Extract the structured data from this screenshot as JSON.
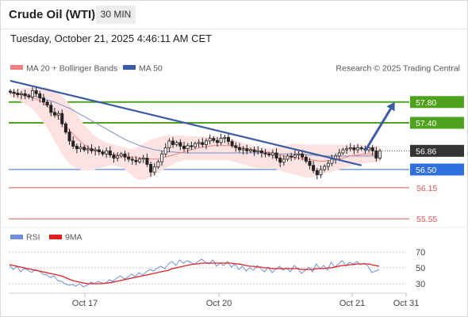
{
  "header": {
    "title": "Crude Oil (WTI)",
    "timeframe": "30 MIN",
    "timestamp": "Tuesday, October 21, 2025 4:46:11 AM CET"
  },
  "legend": {
    "ma20_label": "MA 20 + Bollinger Bands",
    "ma50_label": "MA 50",
    "copyright": "Research © 2025 Trading Central",
    "rsi_label": "RSI",
    "ma9_label": "9MA"
  },
  "colors": {
    "ma20": "#f08080",
    "bollinger_fill": "#fde2e2",
    "ma50": "#3b5ba5",
    "candle": "#222222",
    "trendline": "#3b5ba5",
    "resistance": "#4fa31c",
    "support_pivot": "#2f6fe0",
    "support": "#e05555",
    "current_price_bg": "#333333",
    "rsi": "#6f8fd8",
    "rsi_ma": "#e02020"
  },
  "chart_data": [
    {
      "type": "candlestick",
      "ylim": [
        55.4,
        58.3
      ],
      "x_ticks": [
        "Oct 17",
        "Oct 20",
        "Oct 21",
        "Oct 31"
      ],
      "price_levels": [
        {
          "label": "57.80",
          "value": 57.8,
          "kind": "resistance"
        },
        {
          "label": "57.40",
          "value": 57.4,
          "kind": "resistance"
        },
        {
          "label": "56.86",
          "value": 56.86,
          "kind": "current"
        },
        {
          "label": "56.50",
          "value": 56.5,
          "kind": "pivot"
        },
        {
          "label": "56.15",
          "value": 56.15,
          "kind": "support"
        },
        {
          "label": "55.55",
          "value": 55.55,
          "kind": "support"
        }
      ],
      "close": [
        57.99,
        57.97,
        57.94,
        57.96,
        57.92,
        57.9,
        58.02,
        57.96,
        57.88,
        57.8,
        57.74,
        57.6,
        57.55,
        57.58,
        57.38,
        57.22,
        57.05,
        56.95,
        56.9,
        56.93,
        56.88,
        56.9,
        56.86,
        56.88,
        56.84,
        56.8,
        56.86,
        56.78,
        56.72,
        56.76,
        56.8,
        56.74,
        56.7,
        56.68,
        56.65,
        56.7,
        56.72,
        56.6,
        56.45,
        56.55,
        56.65,
        56.8,
        56.92,
        57.05,
        56.98,
        57.02,
        56.95,
        56.9,
        56.96,
        56.94,
        57.0,
        57.02,
        56.98,
        57.05,
        57.1,
        57.06,
        57.02,
        57.1,
        57.12,
        57.04,
        56.96,
        56.92,
        56.88,
        56.9,
        56.86,
        56.88,
        56.84,
        56.86,
        56.82,
        56.8,
        56.78,
        56.82,
        56.72,
        56.64,
        56.7,
        56.76,
        56.74,
        56.78,
        56.8,
        56.74,
        56.66,
        56.58,
        56.48,
        56.4,
        56.5,
        56.56,
        56.62,
        56.7,
        56.76,
        56.82,
        56.88,
        56.9,
        56.92,
        56.88,
        56.92,
        56.9,
        56.88,
        56.92,
        56.86,
        56.72,
        56.86
      ],
      "ma20": [
        57.98,
        57.96,
        57.95,
        57.94,
        57.92,
        57.9,
        57.88,
        57.86,
        57.82,
        57.78,
        57.72,
        57.66,
        57.58,
        57.5,
        57.42,
        57.34,
        57.26,
        57.18,
        57.1,
        57.04,
        56.98,
        56.94,
        56.9,
        56.88,
        56.86,
        56.84,
        56.82,
        56.8,
        56.79,
        56.78,
        56.77,
        56.76,
        56.75,
        56.74,
        56.73,
        56.72,
        56.72,
        56.71,
        56.7,
        56.7,
        56.71,
        56.72,
        56.74,
        56.76,
        56.78,
        56.8,
        56.82,
        56.84,
        56.86,
        56.88,
        56.9,
        56.92,
        56.93,
        56.94,
        56.95,
        56.96,
        56.96,
        56.96,
        56.96,
        56.96,
        56.95,
        56.94,
        56.93,
        56.92,
        56.9,
        56.89,
        56.88,
        56.86,
        56.85,
        56.84,
        56.83,
        56.82,
        56.8,
        56.78,
        56.76,
        56.75,
        56.74,
        56.73,
        56.72,
        56.71,
        56.7,
        56.69,
        56.68,
        56.67,
        56.66,
        56.66,
        56.67,
        56.68,
        56.69,
        56.7,
        56.72,
        56.74,
        56.76,
        56.77,
        56.78,
        56.79,
        56.8,
        56.8,
        56.8,
        56.81,
        56.82
      ],
      "bollinger_upper": [
        58.02,
        58.02,
        58.04,
        58.06,
        58.07,
        58.08,
        58.08,
        58.08,
        58.08,
        58.08,
        58.08,
        58.06,
        58.02,
        57.98,
        57.92,
        57.84,
        57.76,
        57.66,
        57.56,
        57.46,
        57.36,
        57.28,
        57.2,
        57.14,
        57.1,
        57.06,
        57.03,
        57.0,
        56.98,
        56.96,
        56.94,
        56.92,
        56.9,
        56.9,
        56.92,
        56.96,
        57.0,
        57.04,
        57.08,
        57.1,
        57.12,
        57.14,
        57.15,
        57.16,
        57.16,
        57.16,
        57.16,
        57.15,
        57.14,
        57.14,
        57.14,
        57.14,
        57.14,
        57.14,
        57.14,
        57.14,
        57.14,
        57.13,
        57.12,
        57.1,
        57.08,
        57.06,
        57.04,
        57.02,
        57.0,
        56.98,
        56.96,
        56.94,
        56.93,
        56.92,
        56.92,
        56.92,
        56.93,
        56.94,
        56.96,
        56.98,
        57.0,
        57.0,
        57.0,
        56.99,
        56.98,
        56.98,
        56.98,
        56.98,
        56.98,
        56.98,
        56.98,
        56.98,
        56.98,
        56.98,
        56.98,
        56.98,
        56.98,
        56.98,
        56.98,
        56.97,
        56.96,
        56.96,
        56.96,
        56.96,
        56.96
      ],
      "bollinger_lower": [
        57.9,
        57.88,
        57.84,
        57.8,
        57.76,
        57.72,
        57.66,
        57.58,
        57.5,
        57.4,
        57.3,
        57.18,
        57.04,
        56.92,
        56.8,
        56.7,
        56.62,
        56.56,
        56.52,
        56.5,
        56.48,
        56.48,
        56.48,
        56.5,
        56.52,
        56.54,
        56.56,
        56.58,
        56.58,
        56.56,
        56.54,
        56.5,
        56.44,
        56.38,
        56.32,
        56.3,
        56.3,
        56.32,
        56.36,
        56.4,
        56.44,
        56.48,
        56.52,
        56.56,
        56.6,
        56.64,
        56.66,
        56.68,
        56.68,
        56.68,
        56.68,
        56.68,
        56.68,
        56.68,
        56.68,
        56.68,
        56.68,
        56.68,
        56.68,
        56.68,
        56.66,
        56.64,
        56.62,
        56.6,
        56.58,
        56.56,
        56.54,
        56.52,
        56.52,
        56.52,
        56.52,
        56.52,
        56.5,
        56.48,
        56.46,
        56.44,
        56.42,
        56.4,
        56.38,
        56.36,
        56.34,
        56.34,
        56.36,
        56.38,
        56.4,
        56.42,
        56.44,
        56.46,
        56.48,
        56.5,
        56.52,
        56.54,
        56.56,
        56.58,
        56.6,
        56.61,
        56.62,
        56.63,
        56.64,
        56.64,
        56.64
      ],
      "ma50": [
        57.99,
        57.98,
        57.97,
        57.96,
        57.95,
        57.94,
        57.92,
        57.9,
        57.88,
        57.86,
        57.84,
        57.82,
        57.8,
        57.77,
        57.74,
        57.71,
        57.68,
        57.64,
        57.6,
        57.56,
        57.52,
        57.48,
        57.44,
        57.4,
        57.36,
        57.32,
        57.28,
        57.24,
        57.2,
        57.16,
        57.12,
        57.08,
        57.05,
        57.02,
        56.99,
        56.96,
        56.94,
        56.92,
        56.9,
        56.88,
        56.87,
        56.86,
        56.85,
        56.84,
        56.84,
        56.83,
        56.83,
        56.82,
        56.82,
        56.82,
        56.82,
        56.82,
        56.82,
        56.82,
        56.82,
        56.82,
        56.82,
        56.82,
        56.82,
        56.82,
        56.82,
        56.82,
        56.82,
        56.82,
        56.82,
        56.82,
        56.82,
        56.82,
        56.82,
        56.82,
        56.82,
        56.82,
        56.81,
        56.8,
        56.8,
        56.8,
        56.8,
        56.8,
        56.8,
        56.8,
        56.79,
        56.78,
        56.78,
        56.77,
        56.76,
        56.76,
        56.76,
        56.76,
        56.76,
        56.76,
        56.76,
        56.76,
        56.76,
        56.76,
        56.76,
        56.76,
        56.76,
        56.76,
        56.76,
        56.76,
        56.76
      ],
      "trendline": {
        "start_index": 0,
        "start_value": 58.21,
        "end_index": 95,
        "end_value": 56.58
      },
      "projection_arrow": {
        "from_index": 96,
        "from_value": 56.86,
        "to_index": 104,
        "to_value": 57.8
      }
    },
    {
      "type": "line",
      "title": "RSI",
      "ylim": [
        20,
        80
      ],
      "y_ticks": [
        70,
        50,
        30
      ],
      "series": [
        {
          "name": "RSI",
          "values": [
            53,
            48,
            52,
            45,
            49,
            47,
            44,
            48,
            46,
            42,
            41,
            38,
            40,
            34,
            33,
            30,
            28,
            29,
            27,
            30,
            26,
            28,
            32,
            30,
            33,
            31,
            30,
            35,
            33,
            37,
            40,
            36,
            38,
            42,
            39,
            44,
            41,
            45,
            48,
            46,
            50,
            52,
            49,
            55,
            58,
            53,
            60,
            56,
            59,
            57,
            54,
            58,
            61,
            57,
            55,
            60,
            52,
            56,
            53,
            58,
            51,
            55,
            48,
            52,
            46,
            50,
            47,
            53,
            49,
            45,
            51,
            44,
            48,
            52,
            47,
            50,
            45,
            53,
            49,
            43,
            47,
            51,
            45,
            55,
            49,
            53,
            47,
            57,
            51,
            55,
            59,
            53,
            57,
            55,
            58,
            54,
            56,
            52,
            44,
            46,
            48
          ]
        },
        {
          "name": "9MA",
          "values": [
            54,
            53,
            52,
            51,
            50,
            49,
            48,
            47,
            46,
            45,
            44,
            43,
            42,
            41,
            40,
            38,
            36,
            34,
            33,
            32,
            31,
            30,
            30,
            30,
            30,
            30,
            31,
            31,
            32,
            33,
            34,
            35,
            36,
            37,
            38,
            39,
            40,
            41,
            42,
            43,
            44,
            45,
            46,
            47,
            49,
            50,
            51,
            52,
            53,
            54,
            55,
            55,
            56,
            56,
            56,
            56,
            56,
            56,
            56,
            56,
            56,
            55,
            55,
            54,
            53,
            52,
            52,
            51,
            51,
            50,
            50,
            49,
            49,
            49,
            49,
            49,
            49,
            49,
            49,
            48,
            48,
            48,
            48,
            49,
            49,
            49,
            50,
            50,
            51,
            52,
            53,
            53,
            54,
            54,
            55,
            55,
            55,
            55,
            54,
            53,
            52
          ]
        }
      ]
    }
  ]
}
